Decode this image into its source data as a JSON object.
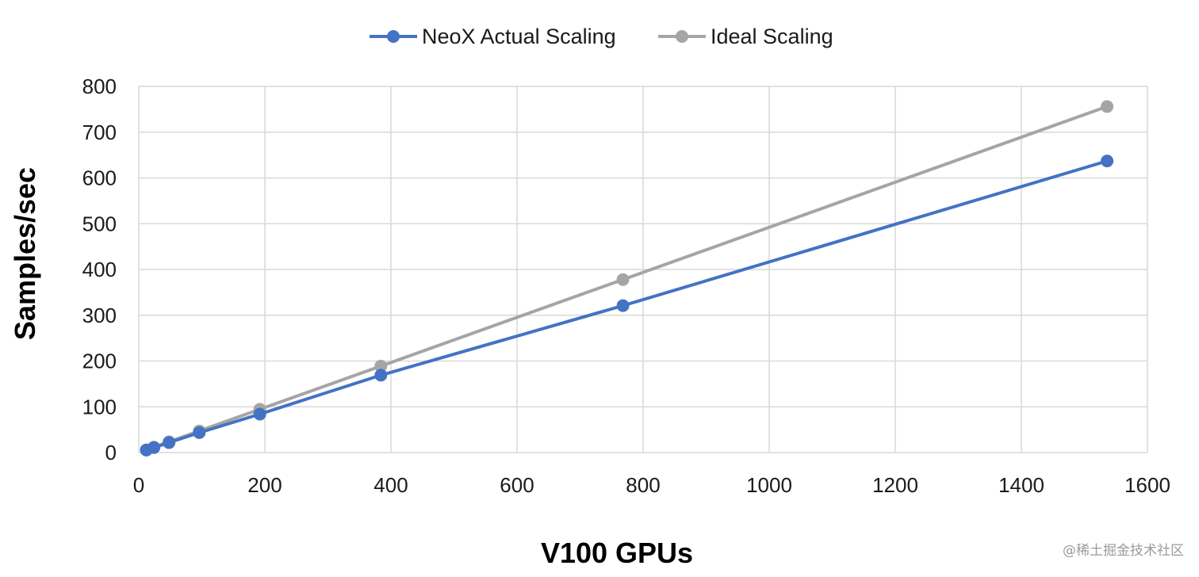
{
  "chart_data": {
    "type": "line",
    "xlabel": "V100 GPUs",
    "ylabel": "Samples/sec",
    "xlim": [
      0,
      1600
    ],
    "ylim": [
      0,
      800
    ],
    "xticks": [
      0,
      200,
      400,
      600,
      800,
      1000,
      1200,
      1400,
      1600
    ],
    "yticks": [
      0,
      100,
      200,
      300,
      400,
      500,
      600,
      700,
      800
    ],
    "grid": true,
    "legend_position": "top-center",
    "series": [
      {
        "name": "NeoX Actual Scaling",
        "color": "#4472c4",
        "x": [
          12,
          24,
          48,
          96,
          192,
          384,
          768,
          1536
        ],
        "y": [
          5.5,
          10.9,
          21.8,
          43.5,
          84,
          169,
          321,
          637
        ]
      },
      {
        "name": "Ideal Scaling",
        "color": "#a5a5a5",
        "x": [
          12,
          24,
          48,
          96,
          192,
          384,
          768,
          1536
        ],
        "y": [
          5.9,
          11.8,
          23.6,
          47.2,
          94.5,
          189,
          378,
          756
        ]
      }
    ]
  },
  "watermark": "@稀土掘金技术社区"
}
